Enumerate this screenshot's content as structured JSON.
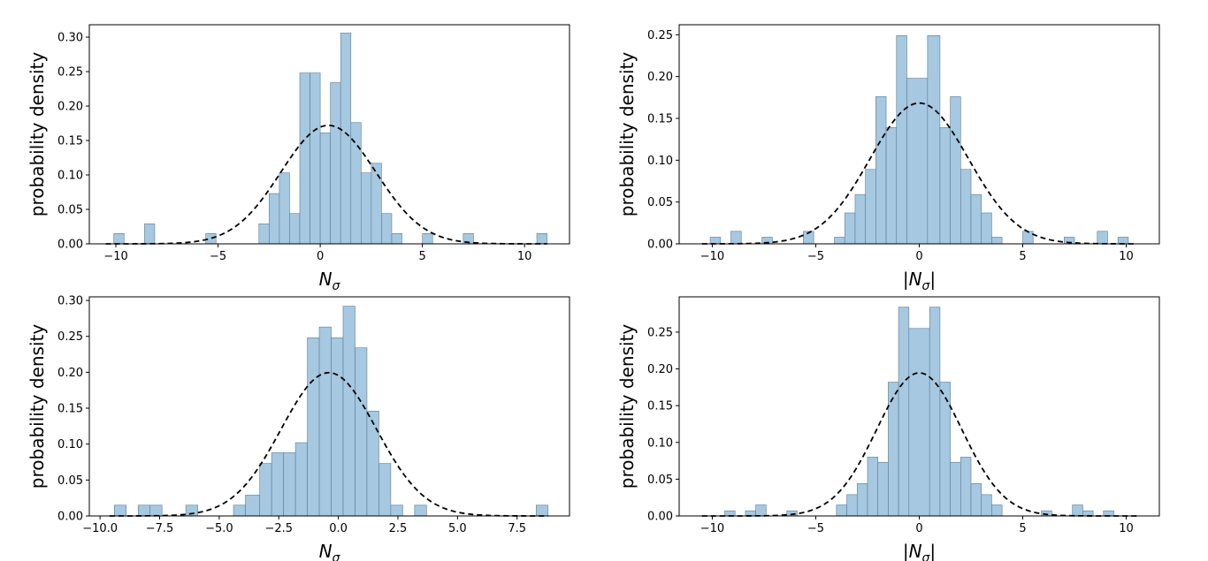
{
  "style": {
    "bar_color": "#a6c8e0",
    "bar_edge": "#5a7d95",
    "curve_color": "#000000"
  },
  "chart_data": [
    {
      "type": "bar",
      "title": "",
      "xlabel_main": "N",
      "xlabel_sub": "σ",
      "xlabel_abs": false,
      "ylabel": "probability density",
      "xlim": [
        -11.3,
        12.2
      ],
      "ylim": [
        0,
        0.318
      ],
      "xticks": [
        -10,
        -5,
        0,
        5,
        10
      ],
      "xtick_labels": [
        "−10",
        "−5",
        "0",
        "5",
        "10"
      ],
      "yticks": [
        0,
        0.05,
        0.1,
        0.15,
        0.2,
        0.25,
        0.3
      ],
      "ytick_labels": [
        "0.00",
        "0.05",
        "0.10",
        "0.15",
        "0.20",
        "0.25",
        "0.30"
      ],
      "bins": [
        {
          "x0": -10.1,
          "x1": -9.6,
          "y": 0.015
        },
        {
          "x0": -8.6,
          "x1": -8.1,
          "y": 0.029
        },
        {
          "x0": -5.6,
          "x1": -5.1,
          "y": 0.015
        },
        {
          "x0": -3.0,
          "x1": -2.5,
          "y": 0.029
        },
        {
          "x0": -2.5,
          "x1": -2.0,
          "y": 0.073
        },
        {
          "x0": -2.0,
          "x1": -1.5,
          "y": 0.103
        },
        {
          "x0": -1.5,
          "x1": -1.0,
          "y": 0.044
        },
        {
          "x0": -1.0,
          "x1": -0.5,
          "y": 0.248
        },
        {
          "x0": -0.5,
          "x1": 0.0,
          "y": 0.248
        },
        {
          "x0": 0.0,
          "x1": 0.5,
          "y": 0.161
        },
        {
          "x0": 0.5,
          "x1": 1.0,
          "y": 0.234
        },
        {
          "x0": 1.0,
          "x1": 1.5,
          "y": 0.306
        },
        {
          "x0": 1.5,
          "x1": 2.0,
          "y": 0.176
        },
        {
          "x0": 2.0,
          "x1": 2.5,
          "y": 0.103
        },
        {
          "x0": 2.5,
          "x1": 3.0,
          "y": 0.117
        },
        {
          "x0": 3.0,
          "x1": 3.5,
          "y": 0.044
        },
        {
          "x0": 3.5,
          "x1": 4.0,
          "y": 0.015
        },
        {
          "x0": 5.0,
          "x1": 5.5,
          "y": 0.015
        },
        {
          "x0": 7.0,
          "x1": 7.5,
          "y": 0.015
        },
        {
          "x0": 10.6,
          "x1": 11.1,
          "y": 0.015
        }
      ],
      "fit": {
        "mean": 0.4,
        "std": 2.32,
        "x_range": [
          -10.5,
          11.1
        ]
      }
    },
    {
      "type": "bar",
      "title": "",
      "xlabel_main": "N",
      "xlabel_sub": "σ",
      "xlabel_abs": true,
      "ylabel": "probability density",
      "xlim": [
        -11.6,
        11.6
      ],
      "ylim": [
        0,
        0.262
      ],
      "xticks": [
        -10,
        -5,
        0,
        5,
        10
      ],
      "xtick_labels": [
        "−10",
        "−5",
        "0",
        "5",
        "10"
      ],
      "yticks": [
        0,
        0.05,
        0.1,
        0.15,
        0.2,
        0.25
      ],
      "ytick_labels": [
        "0.00",
        "0.05",
        "0.10",
        "0.15",
        "0.20",
        "0.25"
      ],
      "bins": [
        {
          "x0": -10.1,
          "x1": -9.6,
          "y": 0.008
        },
        {
          "x0": -9.1,
          "x1": -8.6,
          "y": 0.015
        },
        {
          "x0": -7.6,
          "x1": -7.1,
          "y": 0.008
        },
        {
          "x0": -5.6,
          "x1": -5.1,
          "y": 0.015
        },
        {
          "x0": -4.1,
          "x1": -3.6,
          "y": 0.008
        },
        {
          "x0": -3.6,
          "x1": -3.1,
          "y": 0.037
        },
        {
          "x0": -3.1,
          "x1": -2.6,
          "y": 0.059
        },
        {
          "x0": -2.6,
          "x1": -2.1,
          "y": 0.089
        },
        {
          "x0": -2.1,
          "x1": -1.6,
          "y": 0.176
        },
        {
          "x0": -1.6,
          "x1": -1.1,
          "y": 0.139
        },
        {
          "x0": -1.1,
          "x1": -0.6,
          "y": 0.249
        },
        {
          "x0": -0.6,
          "x1": 0.4,
          "y": 0.198
        },
        {
          "x0": 0.4,
          "x1": 1.0,
          "y": 0.249
        },
        {
          "x0": 1.0,
          "x1": 1.5,
          "y": 0.139
        },
        {
          "x0": 1.5,
          "x1": 2.0,
          "y": 0.176
        },
        {
          "x0": 2.0,
          "x1": 2.5,
          "y": 0.089
        },
        {
          "x0": 2.5,
          "x1": 3.0,
          "y": 0.059
        },
        {
          "x0": 3.0,
          "x1": 3.5,
          "y": 0.037
        },
        {
          "x0": 3.5,
          "x1": 4.0,
          "y": 0.008
        },
        {
          "x0": 5.0,
          "x1": 5.5,
          "y": 0.015
        },
        {
          "x0": 7.0,
          "x1": 7.5,
          "y": 0.008
        },
        {
          "x0": 8.6,
          "x1": 9.1,
          "y": 0.015
        },
        {
          "x0": 9.6,
          "x1": 10.1,
          "y": 0.008
        }
      ],
      "fit": {
        "mean": 0.0,
        "std": 2.37,
        "x_range": [
          -10.5,
          10.5
        ]
      }
    },
    {
      "type": "bar",
      "title": "",
      "xlabel_main": "N",
      "xlabel_sub": "σ",
      "xlabel_abs": false,
      "ylabel": "probability density",
      "xlim": [
        -10.45,
        9.7
      ],
      "ylim": [
        0,
        0.305
      ],
      "xticks": [
        -10,
        -7.5,
        -5,
        -2.5,
        0,
        2.5,
        5,
        7.5
      ],
      "xtick_labels": [
        "−10.0",
        "−7.5",
        "−5.0",
        "−2.5",
        "0.0",
        "2.5",
        "5.0",
        "7.5"
      ],
      "yticks": [
        0,
        0.05,
        0.1,
        0.15,
        0.2,
        0.25,
        0.3
      ],
      "ytick_labels": [
        "0.00",
        "0.05",
        "0.10",
        "0.15",
        "0.20",
        "0.25",
        "0.30"
      ],
      "bins": [
        {
          "x0": -9.4,
          "x1": -8.9,
          "y": 0.015
        },
        {
          "x0": -8.4,
          "x1": -7.9,
          "y": 0.015
        },
        {
          "x0": -7.9,
          "x1": -7.4,
          "y": 0.015
        },
        {
          "x0": -6.4,
          "x1": -5.9,
          "y": 0.015
        },
        {
          "x0": -4.4,
          "x1": -3.9,
          "y": 0.015
        },
        {
          "x0": -3.9,
          "x1": -3.3,
          "y": 0.029
        },
        {
          "x0": -3.3,
          "x1": -2.8,
          "y": 0.073
        },
        {
          "x0": -2.8,
          "x1": -2.3,
          "y": 0.088
        },
        {
          "x0": -2.3,
          "x1": -1.8,
          "y": 0.088
        },
        {
          "x0": -1.8,
          "x1": -1.3,
          "y": 0.102
        },
        {
          "x0": -1.3,
          "x1": -0.8,
          "y": 0.248
        },
        {
          "x0": -0.8,
          "x1": -0.3,
          "y": 0.263
        },
        {
          "x0": -0.3,
          "x1": 0.2,
          "y": 0.248
        },
        {
          "x0": 0.2,
          "x1": 0.7,
          "y": 0.292
        },
        {
          "x0": 0.7,
          "x1": 1.2,
          "y": 0.234
        },
        {
          "x0": 1.2,
          "x1": 1.7,
          "y": 0.146
        },
        {
          "x0": 1.7,
          "x1": 2.2,
          "y": 0.073
        },
        {
          "x0": 2.2,
          "x1": 2.7,
          "y": 0.015
        },
        {
          "x0": 3.2,
          "x1": 3.7,
          "y": 0.015
        },
        {
          "x0": 8.3,
          "x1": 8.8,
          "y": 0.015
        }
      ],
      "fit": {
        "mean": -0.4,
        "std": 2.0,
        "x_range": [
          -9.6,
          8.8
        ]
      }
    },
    {
      "type": "bar",
      "title": "",
      "xlabel_main": "N",
      "xlabel_sub": "σ",
      "xlabel_abs": true,
      "ylabel": "probability density",
      "xlim": [
        -11.6,
        11.6
      ],
      "ylim": [
        0,
        0.298
      ],
      "xticks": [
        -10,
        -5,
        0,
        5,
        10
      ],
      "xtick_labels": [
        "−10",
        "−5",
        "0",
        "5",
        "10"
      ],
      "yticks": [
        0,
        0.05,
        0.1,
        0.15,
        0.2,
        0.25
      ],
      "ytick_labels": [
        "0.00",
        "0.05",
        "0.10",
        "0.15",
        "0.20",
        "0.25"
      ],
      "bins": [
        {
          "x0": -9.4,
          "x1": -8.9,
          "y": 0.007
        },
        {
          "x0": -8.4,
          "x1": -7.9,
          "y": 0.007
        },
        {
          "x0": -7.9,
          "x1": -7.4,
          "y": 0.015
        },
        {
          "x0": -6.4,
          "x1": -5.9,
          "y": 0.007
        },
        {
          "x0": -4.0,
          "x1": -3.5,
          "y": 0.015
        },
        {
          "x0": -3.5,
          "x1": -3.0,
          "y": 0.029
        },
        {
          "x0": -3.0,
          "x1": -2.5,
          "y": 0.044
        },
        {
          "x0": -2.5,
          "x1": -2.0,
          "y": 0.08
        },
        {
          "x0": -2.0,
          "x1": -1.5,
          "y": 0.073
        },
        {
          "x0": -1.5,
          "x1": -1.0,
          "y": 0.182
        },
        {
          "x0": -1.0,
          "x1": -0.5,
          "y": 0.284
        },
        {
          "x0": -0.5,
          "x1": 0.5,
          "y": 0.255
        },
        {
          "x0": 0.5,
          "x1": 1.0,
          "y": 0.284
        },
        {
          "x0": 1.0,
          "x1": 1.5,
          "y": 0.182
        },
        {
          "x0": 1.5,
          "x1": 2.0,
          "y": 0.073
        },
        {
          "x0": 2.0,
          "x1": 2.5,
          "y": 0.08
        },
        {
          "x0": 2.5,
          "x1": 3.0,
          "y": 0.044
        },
        {
          "x0": 3.0,
          "x1": 3.5,
          "y": 0.029
        },
        {
          "x0": 3.5,
          "x1": 4.0,
          "y": 0.015
        },
        {
          "x0": 5.9,
          "x1": 6.4,
          "y": 0.007
        },
        {
          "x0": 7.4,
          "x1": 7.9,
          "y": 0.015
        },
        {
          "x0": 7.9,
          "x1": 8.4,
          "y": 0.007
        },
        {
          "x0": 8.9,
          "x1": 9.4,
          "y": 0.007
        }
      ],
      "fit": {
        "mean": 0.0,
        "std": 2.05,
        "x_range": [
          -10.5,
          10.5
        ]
      }
    }
  ]
}
